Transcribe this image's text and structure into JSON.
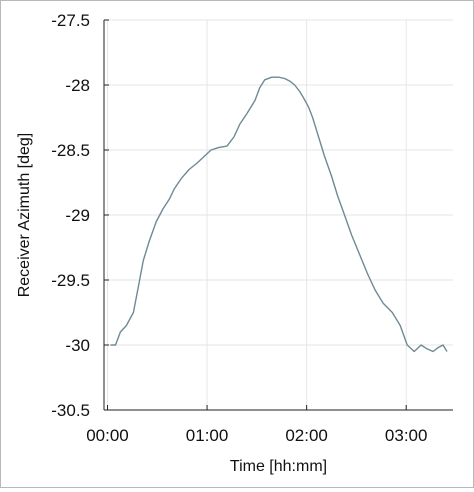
{
  "chart_data": {
    "type": "line",
    "title": "",
    "xlabel": "Time [hh:mm]",
    "ylabel": "Receiver Azimuth [deg]",
    "xlim": [
      -0.035,
      3.47
    ],
    "ylim": [
      -30.5,
      -27.5
    ],
    "x_unit": "hours",
    "x_ticks": [
      {
        "value": 0,
        "label": "00:00"
      },
      {
        "value": 1,
        "label": "01:00"
      },
      {
        "value": 2,
        "label": "02:00"
      },
      {
        "value": 3,
        "label": "03:00"
      }
    ],
    "y_ticks": [
      {
        "value": -27.5,
        "label": "-27.5"
      },
      {
        "value": -28,
        "label": "-28"
      },
      {
        "value": -28.5,
        "label": "-28.5"
      },
      {
        "value": -29,
        "label": "-29"
      },
      {
        "value": -29.5,
        "label": "-29.5"
      },
      {
        "value": -30,
        "label": "-30"
      },
      {
        "value": -30.5,
        "label": "-30.5"
      }
    ],
    "grid": true,
    "colors": {
      "line": "#6e8a94",
      "grid": "#e6e6e6",
      "axis": "#222222"
    },
    "series": [
      {
        "name": "",
        "x": [
          0.03,
          0.08,
          0.13,
          0.19,
          0.26,
          0.31,
          0.36,
          0.42,
          0.49,
          0.56,
          0.62,
          0.67,
          0.74,
          0.82,
          0.9,
          0.97,
          1.04,
          1.12,
          1.2,
          1.27,
          1.33,
          1.4,
          1.48,
          1.53,
          1.58,
          1.65,
          1.72,
          1.78,
          1.83,
          1.88,
          1.93,
          1.97,
          2.02,
          2.06,
          2.12,
          2.18,
          2.25,
          2.31,
          2.38,
          2.45,
          2.53,
          2.61,
          2.69,
          2.77,
          2.86,
          2.94,
          3.01,
          3.08,
          3.15,
          3.21,
          3.27,
          3.32,
          3.37,
          3.41
        ],
        "y": [
          -30.0,
          -30.0,
          -29.9,
          -29.85,
          -29.75,
          -29.55,
          -29.35,
          -29.2,
          -29.05,
          -28.95,
          -28.88,
          -28.8,
          -28.72,
          -28.65,
          -28.6,
          -28.55,
          -28.5,
          -28.48,
          -28.47,
          -28.4,
          -28.3,
          -28.22,
          -28.12,
          -28.02,
          -27.96,
          -27.94,
          -27.94,
          -27.95,
          -27.97,
          -28.0,
          -28.05,
          -28.1,
          -28.17,
          -28.25,
          -28.4,
          -28.55,
          -28.7,
          -28.85,
          -29.0,
          -29.15,
          -29.3,
          -29.45,
          -29.58,
          -29.68,
          -29.75,
          -29.85,
          -30.0,
          -30.05,
          -30.0,
          -30.03,
          -30.05,
          -30.02,
          -30.0,
          -30.05
        ]
      }
    ]
  }
}
